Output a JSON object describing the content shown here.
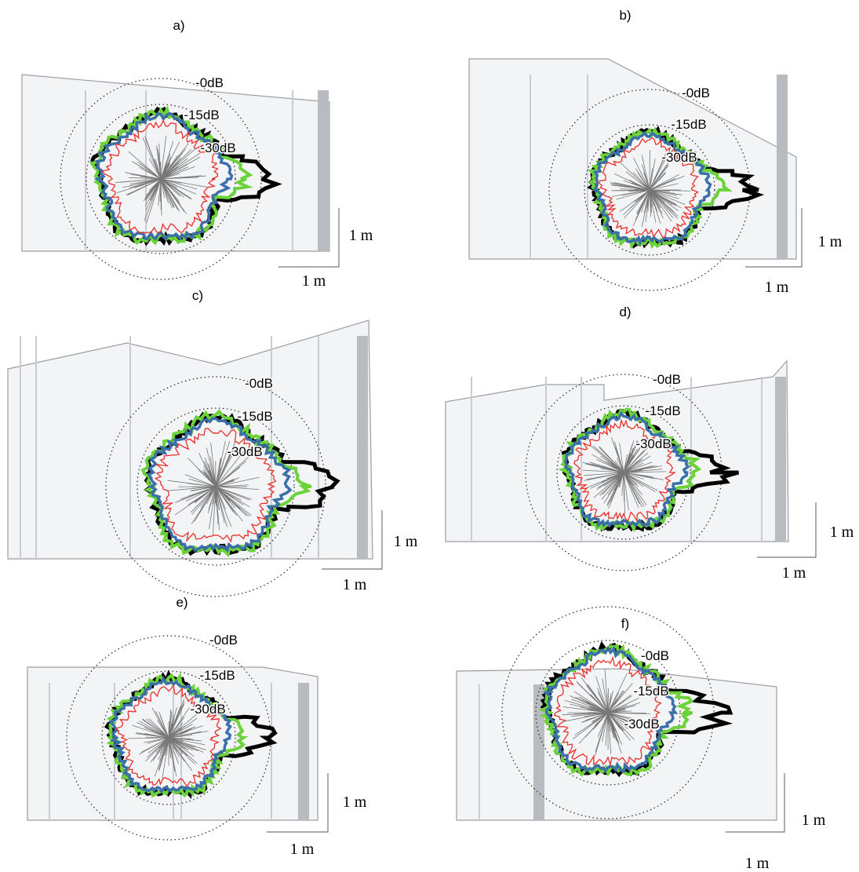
{
  "panels": [
    {
      "label": "a)",
      "levels": [
        "-0dB",
        "-15dB",
        "-30dB"
      ],
      "scale": {
        "vertical": "1 m",
        "horizontal": "1 m"
      }
    },
    {
      "label": "b)",
      "levels": [
        "-0dB",
        "-15dB",
        "-30dB"
      ],
      "scale": {
        "vertical": "1 m",
        "horizontal": "1 m"
      }
    },
    {
      "label": "c)",
      "levels": [
        "-0dB",
        "-15dB",
        "-30dB"
      ],
      "scale": {
        "vertical": "1 m",
        "horizontal": "1 m"
      }
    },
    {
      "label": "d)",
      "levels": [
        "-0dB",
        "-15dB",
        "-30dB"
      ],
      "scale": {
        "vertical": "1 m",
        "horizontal": "1 m"
      }
    },
    {
      "label": "e)",
      "levels": [
        "-0dB",
        "-15dB",
        "-30dB"
      ],
      "scale": {
        "vertical": "1 m",
        "horizontal": "1 m"
      }
    },
    {
      "label": "f)",
      "levels": [
        "-0dB",
        "-15dB",
        "-30dB"
      ],
      "scale": {
        "vertical": "1 m",
        "horizontal": "1 m"
      }
    }
  ]
}
